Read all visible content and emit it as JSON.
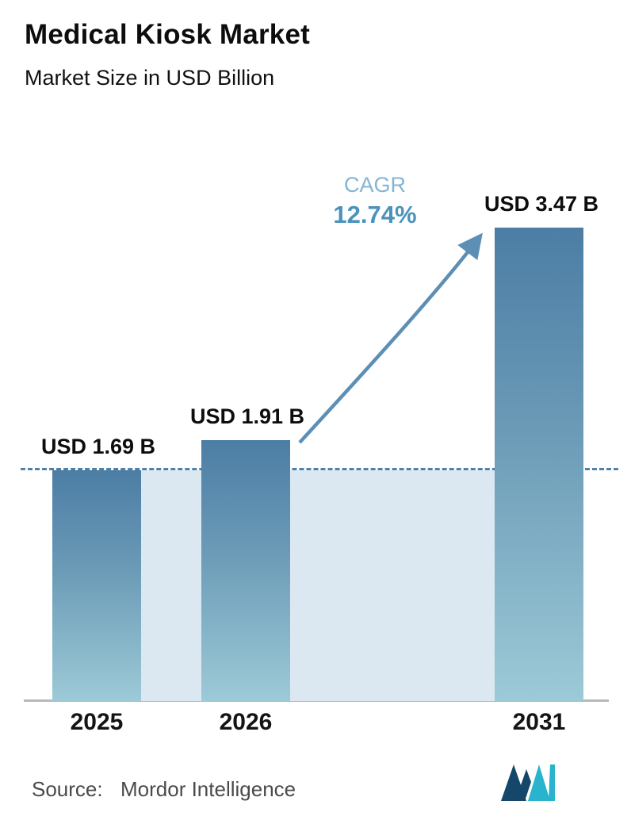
{
  "header": {
    "title": "Medical Kiosk Market",
    "subtitle": "Market Size in USD Billion"
  },
  "cagr": {
    "label": "CAGR",
    "value": "12.74%"
  },
  "footer": {
    "source_label": "Source:",
    "source_name": "Mordor Intelligence"
  },
  "colors": {
    "bar_gradient_top": "#4c7da4",
    "bar_gradient_bottom": "#9ccad7",
    "shaded_region": "#dbe8f2",
    "dashed_line": "#4f81a8",
    "arrow": "#5d8fb5",
    "cagr_label": "#83b5d5",
    "cagr_value": "#4a92bc",
    "axis_line": "#b9b9b9",
    "text": "#0d0d0d",
    "source_text": "#4a4a4a",
    "logo_dark": "#15476a",
    "logo_teal": "#2ab3cc"
  },
  "chart_data": {
    "type": "bar",
    "title": "Medical Kiosk Market",
    "subtitle": "Market Size in USD Billion",
    "categories": [
      "2025",
      "2026",
      "2031"
    ],
    "values": [
      1.69,
      1.91,
      3.47
    ],
    "value_labels": [
      "USD 1.69 B",
      "USD 1.91 B",
      "USD 3.47 B"
    ],
    "unit": "USD Billion",
    "cagr": "12.74%",
    "xlabel": "",
    "ylabel": "Market Size in USD Billion",
    "ylim": [
      0,
      3.6
    ],
    "grid": false,
    "legend": false,
    "reference_line": {
      "style": "dashed",
      "at_value": 1.69
    },
    "annotations": [
      "CAGR 12.74% arrow from 2026 bar to 2031 bar"
    ]
  }
}
